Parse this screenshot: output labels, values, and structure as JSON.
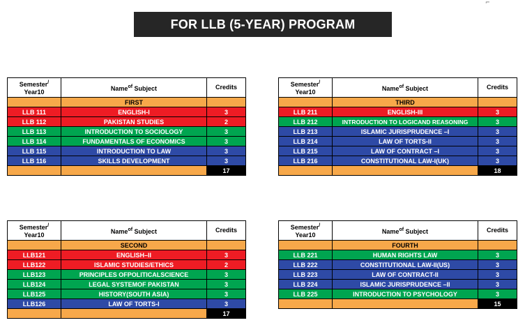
{
  "page": {
    "title": "FOR LLB (5-YEAR) PROGRAM",
    "corner_mark": "⌐"
  },
  "headers": {
    "semester_line1": "Semester",
    "semester_slash": "/",
    "semester_line2": "Year10",
    "name_part1": "Name",
    "name_of": "of",
    "name_part2": " Subject",
    "credits": "Credits"
  },
  "colors": {
    "red": "#ee1c24",
    "green": "#00a550",
    "blue": "#2e4aa6",
    "orange": "#f7a84a",
    "black": "#000000"
  },
  "tables": [
    {
      "semester": "FIRST",
      "rows": [
        {
          "code": "LLB 111",
          "subject": "ENGLISH-I",
          "credits": "3",
          "color": "red"
        },
        {
          "code": "LLB 112",
          "subject": "PAKISTAN STUDIES",
          "credits": "2",
          "color": "red"
        },
        {
          "code": "LLB 113",
          "subject": "INTRODUCTION TO SOCIOLOGY",
          "credits": "3",
          "color": "green"
        },
        {
          "code": "LLB 114",
          "subject": "FUNDAMENTALS OF ECONOMICS",
          "credits": "3",
          "color": "green"
        },
        {
          "code": "LLB 115",
          "subject": "INTRODUCTION TO LAW",
          "credits": "3",
          "color": "blue"
        },
        {
          "code": "LLB 116",
          "subject": "SKILLS DEVELOPMENT",
          "credits": "3",
          "color": "blue"
        }
      ],
      "total": "17"
    },
    {
      "semester": "THIRD",
      "rows": [
        {
          "code": "LLB 211",
          "subject": "ENGLISH-III",
          "credits": "3",
          "color": "red"
        },
        {
          "code": "LLB 212",
          "subject": "INTRODUCTION TO LOGICAND REASONING",
          "credits": "3",
          "color": "green"
        },
        {
          "code": "LLB 213",
          "subject": "ISLAMIC JURISPRUDENCE –I",
          "credits": "3",
          "color": "blue"
        },
        {
          "code": "LLB 214",
          "subject": "LAW OF TORTS-II",
          "credits": "3",
          "color": "blue"
        },
        {
          "code": "LLB 215",
          "subject": "LAW OF CONTRACT –I",
          "credits": "3",
          "color": "blue"
        },
        {
          "code": "LLB 216",
          "subject": "CONSTITUTIONAL LAW-I(UK)",
          "credits": "3",
          "color": "blue"
        }
      ],
      "total": "18"
    },
    {
      "semester": "SECOND",
      "rows": [
        {
          "code": "LLB121",
          "subject": "ENGLISH–II",
          "credits": "3",
          "color": "red"
        },
        {
          "code": "LLB122",
          "subject": "ISLAMIC STUDIES/ETHICS",
          "credits": "2",
          "color": "red"
        },
        {
          "code": "LLB123",
          "subject": "PRINCIPLES OFPOLITICALSCIENCE",
          "credits": "3",
          "color": "green"
        },
        {
          "code": "LLB124",
          "subject": "LEGAL SYSTEMOF PAKISTAN",
          "credits": "3",
          "color": "green"
        },
        {
          "code": "LLB125",
          "subject": "HISTORY(SOUTH ASIA)",
          "credits": "3",
          "color": "green"
        },
        {
          "code": "LLB126",
          "subject": "LAW OF TORTS-I",
          "credits": "3",
          "color": "blue"
        }
      ],
      "total": "17"
    },
    {
      "semester": "FOURTH",
      "rows": [
        {
          "code": "LLB 221",
          "subject": "HUMAN RIGHTS LAW",
          "credits": "3",
          "color": "green"
        },
        {
          "code": "LLB 222",
          "subject": "CONSTITUTIONAL LAW-II(US)",
          "credits": "3",
          "color": "blue"
        },
        {
          "code": "LLB 223",
          "subject": "LAW OF CONTRACT-II",
          "credits": "3",
          "color": "blue"
        },
        {
          "code": "LLB 224",
          "subject": "ISLAMIC JURISPRUDENCE –II",
          "credits": "3",
          "color": "blue"
        },
        {
          "code": "LLB 225",
          "subject": "INTRODUCTION TO PSYCHOLOGY",
          "credits": "3",
          "color": "green"
        }
      ],
      "total": "15"
    }
  ]
}
